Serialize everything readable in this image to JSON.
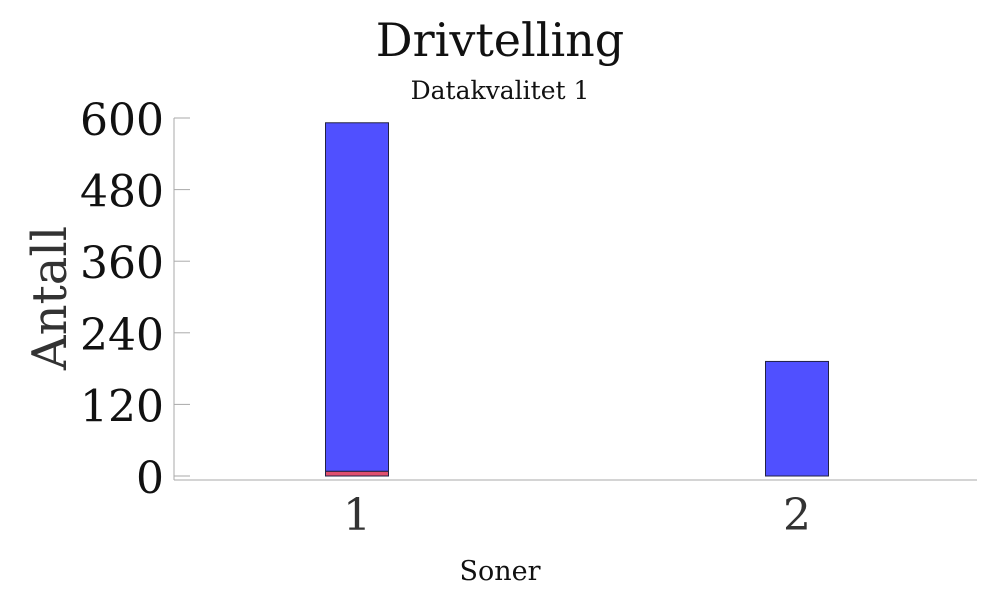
{
  "chart_data": {
    "type": "bar",
    "stacked": true,
    "title": "Drivtelling",
    "subtitle": "Datakvalitet 1",
    "xlabel": "Soner",
    "ylabel": "Antall",
    "categories": [
      "1",
      "2"
    ],
    "ylim": [
      0,
      600
    ],
    "yticks": [
      "0",
      "120",
      "240",
      "360",
      "480",
      "600"
    ],
    "grid": false,
    "legend": "none",
    "series": [
      {
        "values": [
          8,
          0
        ],
        "color": "#e0506e"
      },
      {
        "values": [
          584,
          192
        ],
        "color": "#5050ff"
      }
    ]
  }
}
